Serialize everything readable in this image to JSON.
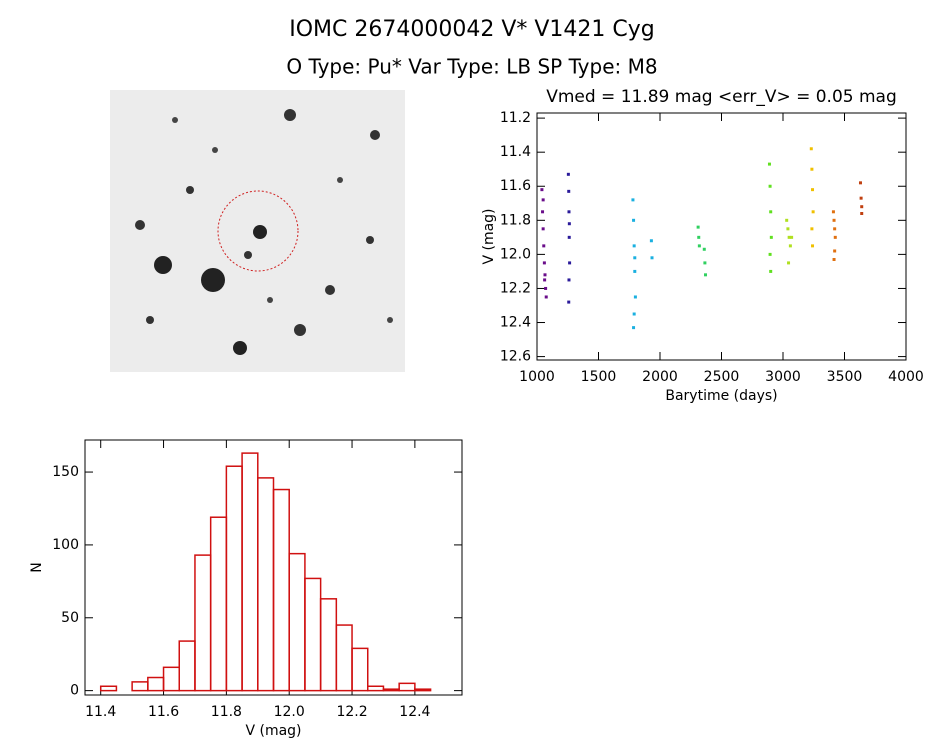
{
  "title": "IOMC 2674000042    V* V1421 Cyg",
  "subtitle": "O Type: Pu*  Var Type: LB  SP Type: M8",
  "chart_data": [
    {
      "type": "scatter",
      "title": "Vmed = 11.89 mag <err_V> = 0.05 mag",
      "xlabel": "Barytime (days)",
      "ylabel": "V (mag)",
      "xlim": [
        1000,
        4000
      ],
      "xticks": [
        1000,
        1500,
        2000,
        2500,
        3000,
        3500,
        4000
      ],
      "ylim": [
        12.62,
        11.17
      ],
      "yticks": [
        11.2,
        11.4,
        11.6,
        11.8,
        {
          "value": 12,
          "label": "12.0"
        },
        12.2,
        12.4,
        12.6
      ],
      "series": [
        {
          "color": "#6a0d8a",
          "x": [
            1040,
            1045,
            1050,
            1055,
            1060,
            1065,
            1070,
            1075,
            1050,
            1062
          ],
          "values": [
            11.62,
            11.75,
            11.85,
            11.95,
            12.05,
            12.12,
            12.2,
            12.25,
            11.68,
            12.15
          ]
        },
        {
          "color": "#2a1a9a",
          "x": [
            1255,
            1258,
            1260,
            1262,
            1265,
            1260,
            1258,
            1263
          ],
          "values": [
            11.53,
            11.63,
            11.75,
            11.9,
            12.05,
            12.15,
            12.28,
            11.82
          ]
        },
        {
          "color": "#1ab0e0",
          "x": [
            1780,
            1785,
            1790,
            1795,
            1800,
            1790,
            1785,
            1795,
            1930,
            1935
          ],
          "values": [
            11.68,
            11.8,
            11.95,
            12.1,
            12.25,
            12.35,
            12.43,
            12.02,
            11.92,
            12.02
          ]
        },
        {
          "color": "#30d060",
          "x": [
            2310,
            2315,
            2320,
            2360,
            2365,
            2370
          ],
          "values": [
            11.84,
            11.9,
            11.95,
            11.97,
            12.05,
            12.12
          ]
        },
        {
          "color": "#60e020",
          "x": [
            2890,
            2895,
            2900,
            2905,
            2895,
            2900
          ],
          "values": [
            11.47,
            11.6,
            11.75,
            11.9,
            12.0,
            12.1
          ]
        },
        {
          "color": "#b0e020",
          "x": [
            3030,
            3040,
            3050,
            3060,
            3045,
            3070
          ],
          "values": [
            11.8,
            11.85,
            11.9,
            11.95,
            12.05,
            11.9
          ]
        },
        {
          "color": "#f0c000",
          "x": [
            3230,
            3235,
            3240,
            3245,
            3235,
            3240
          ],
          "values": [
            11.38,
            11.5,
            11.62,
            11.75,
            11.85,
            11.95
          ]
        },
        {
          "color": "#e07010",
          "x": [
            3410,
            3415,
            3420,
            3425,
            3420,
            3415
          ],
          "values": [
            11.75,
            11.8,
            11.85,
            11.9,
            11.98,
            12.03
          ]
        },
        {
          "color": "#c04010",
          "x": [
            3630,
            3635,
            3640,
            3640
          ],
          "values": [
            11.58,
            11.67,
            11.72,
            11.76
          ]
        }
      ]
    },
    {
      "type": "histogram",
      "xlabel": "V (mag)",
      "ylabel": "N",
      "color": "#d01010",
      "bins": [
        11.4,
        11.45,
        11.5,
        11.55,
        11.6,
        11.65,
        11.7,
        11.75,
        11.8,
        11.85,
        11.9,
        11.95,
        12.0,
        12.05,
        12.1,
        12.15,
        12.2,
        12.25,
        12.3,
        12.35,
        12.4,
        12.45
      ],
      "values": [
        3,
        0,
        6,
        9,
        16,
        34,
        93,
        119,
        154,
        163,
        146,
        138,
        94,
        77,
        63,
        45,
        29,
        3,
        1,
        5,
        1
      ],
      "xlim": [
        11.35,
        12.55
      ],
      "xticks": [
        11.4,
        11.6,
        11.8,
        {
          "value": 12,
          "label": "12.0"
        },
        12.2,
        12.4
      ],
      "ylim": [
        -3,
        172
      ],
      "yticks": [
        0,
        50,
        100,
        150
      ]
    }
  ]
}
